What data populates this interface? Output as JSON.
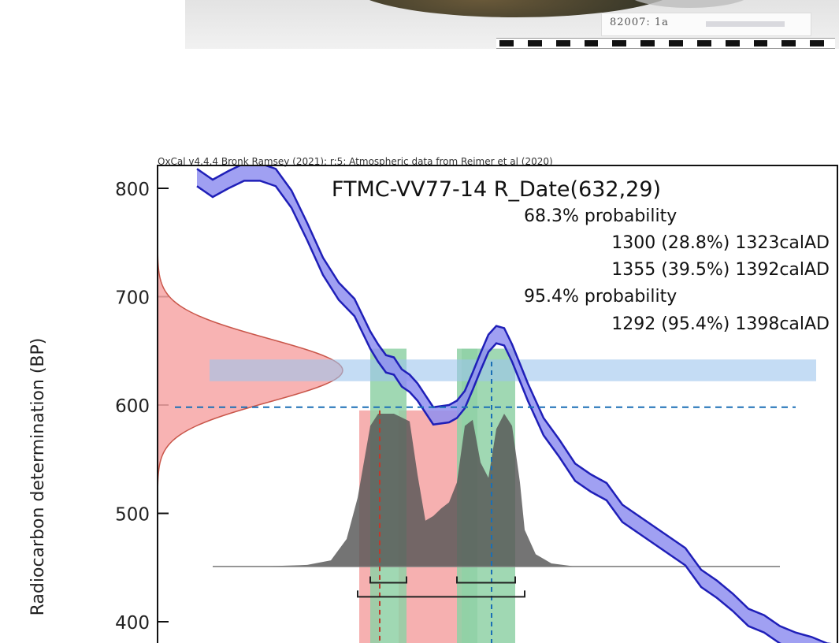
{
  "photo": {
    "label": "82007: 1a",
    "scale_segments": 12
  },
  "chart_data": {
    "type": "area",
    "header": "OxCal v4.4.4 Bronk Ramsey (2021); r:5; Atmospheric data from Reimer et al (2020)",
    "title": "FTMC-VV77-14 R_Date(632,29)",
    "ylabel": "Radiocarbon determination (BP)",
    "ylim": [
      390,
      810
    ],
    "xlim": [
      1190,
      1600
    ],
    "y_ticks": [
      400,
      500,
      600,
      700,
      800
    ],
    "measurement": {
      "bp": 632,
      "error": 29
    },
    "annotations": [
      "68.3% probability",
      "1300 (28.8%) 1323calAD",
      "1355 (39.5%) 1392calAD",
      "95.4% probability",
      "1292 (95.4%) 1398calAD"
    ],
    "ranges_68": [
      [
        1300,
        1323
      ],
      [
        1355,
        1392
      ]
    ],
    "range_95": [
      1292,
      1398
    ],
    "calibration_curve": {
      "year": [
        1190,
        1200,
        1210,
        1220,
        1230,
        1240,
        1250,
        1260,
        1270,
        1280,
        1290,
        1300,
        1305,
        1310,
        1315,
        1320,
        1325,
        1330,
        1340,
        1350,
        1355,
        1360,
        1365,
        1370,
        1375,
        1380,
        1385,
        1390,
        1395,
        1400,
        1410,
        1420,
        1430,
        1440,
        1450,
        1460,
        1470,
        1480,
        1490,
        1500,
        1510,
        1520,
        1530,
        1540,
        1550,
        1560,
        1570,
        1580,
        1590,
        1600
      ],
      "bp": [
        810,
        800,
        808,
        815,
        815,
        810,
        790,
        760,
        728,
        705,
        690,
        660,
        648,
        638,
        636,
        625,
        620,
        612,
        590,
        592,
        596,
        605,
        622,
        640,
        657,
        665,
        663,
        648,
        630,
        612,
        580,
        560,
        538,
        528,
        520,
        500,
        490,
        480,
        470,
        460,
        440,
        430,
        418,
        404,
        398,
        388,
        382,
        378,
        372,
        370
      ],
      "band_half_width": 8
    },
    "probability_distribution": {
      "year": [
        1200,
        1230,
        1260,
        1275,
        1285,
        1292,
        1300,
        1305,
        1315,
        1325,
        1330,
        1335,
        1340,
        1345,
        1350,
        1355,
        1360,
        1365,
        1370,
        1375,
        1380,
        1385,
        1390,
        1395,
        1398,
        1405,
        1415,
        1430,
        1450,
        1470,
        1490
      ],
      "density": [
        0,
        0,
        0.01,
        0.04,
        0.18,
        0.45,
        0.92,
        1.0,
        1.0,
        0.95,
        0.6,
        0.3,
        0.33,
        0.38,
        0.42,
        0.55,
        0.92,
        0.96,
        0.68,
        0.58,
        0.9,
        1.0,
        0.92,
        0.55,
        0.24,
        0.08,
        0.02,
        0,
        0,
        0,
        0
      ]
    }
  }
}
